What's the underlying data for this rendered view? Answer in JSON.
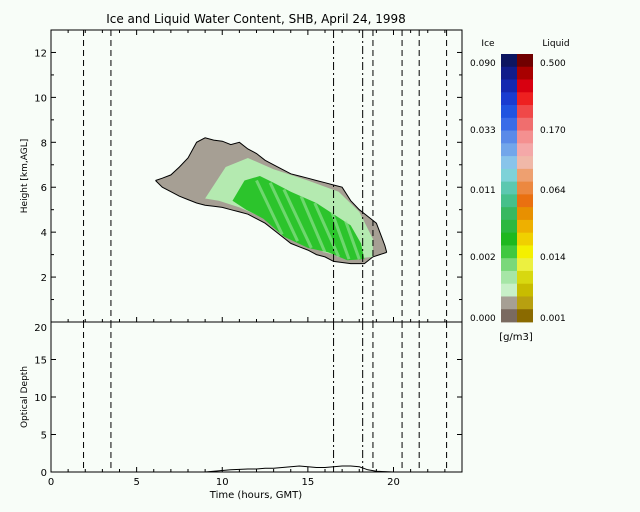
{
  "figure": {
    "title": "Ice and Liquid Water Content, SHB, April 24, 1998",
    "xlabel": "Time (hours, GMT)"
  },
  "chart_data": [
    {
      "type": "heatmap",
      "title": "Ice and Liquid Water Content, SHB, April 24, 1998",
      "ylabel": "Height [km,AGL]",
      "xlim": [
        0,
        24
      ],
      "ylim": [
        0,
        13
      ],
      "x_ticks": [
        0,
        5,
        10,
        15,
        20
      ],
      "x_tick_labels": [
        "0",
        "5",
        "10",
        "15",
        "20"
      ],
      "y_ticks": [
        2,
        4,
        6,
        8,
        10,
        12
      ],
      "y_tick_labels": [
        "2",
        "4",
        "6",
        "8",
        "10",
        "12"
      ],
      "vertical_lines": [
        {
          "x": 1.9,
          "style": "dashed"
        },
        {
          "x": 3.5,
          "style": "dashed"
        },
        {
          "x": 16.5,
          "style": "dash-dot"
        },
        {
          "x": 18.2,
          "style": "dash-dot"
        },
        {
          "x": 18.8,
          "style": "dashed"
        },
        {
          "x": 20.5,
          "style": "dashed"
        },
        {
          "x": 21.5,
          "style": "dashed"
        },
        {
          "x": 23.1,
          "style": "dashed"
        }
      ],
      "cloud": {
        "top_outline": [
          [
            6.1,
            6.3
          ],
          [
            6.5,
            6.4
          ],
          [
            7,
            6.55
          ],
          [
            7.5,
            6.9
          ],
          [
            8,
            7.3
          ],
          [
            8.5,
            8.0
          ],
          [
            9.0,
            8.2
          ],
          [
            9.5,
            8.1
          ],
          [
            10.0,
            8.05
          ],
          [
            10.5,
            7.9
          ],
          [
            11.0,
            8.0
          ],
          [
            11.5,
            7.7
          ],
          [
            12.0,
            7.5
          ],
          [
            12.5,
            7.2
          ],
          [
            13.0,
            7.0
          ],
          [
            13.5,
            6.8
          ],
          [
            14.0,
            6.6
          ],
          [
            14.5,
            6.5
          ],
          [
            15.0,
            6.4
          ],
          [
            15.5,
            6.3
          ],
          [
            16.0,
            6.2
          ],
          [
            16.5,
            6.1
          ],
          [
            17.0,
            6.0
          ],
          [
            17.5,
            5.4
          ],
          [
            18.0,
            5.0
          ],
          [
            18.5,
            4.7
          ],
          [
            19.0,
            4.4
          ],
          [
            19.3,
            3.8
          ],
          [
            19.5,
            3.4
          ],
          [
            19.6,
            3.1
          ]
        ],
        "base_outline": [
          [
            19.6,
            3.1
          ],
          [
            19.2,
            3.0
          ],
          [
            18.8,
            2.9
          ],
          [
            18.3,
            2.6
          ],
          [
            17.5,
            2.6
          ],
          [
            17.0,
            2.65
          ],
          [
            16.5,
            2.7
          ],
          [
            16.0,
            2.9
          ],
          [
            15.5,
            3.0
          ],
          [
            15.0,
            3.2
          ],
          [
            14.5,
            3.35
          ],
          [
            14.0,
            3.5
          ],
          [
            13.5,
            3.8
          ],
          [
            13.0,
            4.1
          ],
          [
            12.5,
            4.4
          ],
          [
            12.0,
            4.6
          ],
          [
            11.5,
            4.8
          ],
          [
            11.0,
            4.9
          ],
          [
            10.5,
            5.0
          ],
          [
            10.0,
            5.1
          ],
          [
            9.5,
            5.15
          ],
          [
            9.0,
            5.2
          ],
          [
            8.5,
            5.3
          ],
          [
            8.0,
            5.45
          ],
          [
            7.5,
            5.6
          ],
          [
            7.0,
            5.8
          ],
          [
            6.5,
            6.0
          ],
          [
            6.1,
            6.3
          ]
        ],
        "light_green_region": [
          [
            9.0,
            5.5
          ],
          [
            10.2,
            6.9
          ],
          [
            11.5,
            7.3
          ],
          [
            13.0,
            6.8
          ],
          [
            15.0,
            6.3
          ],
          [
            16.8,
            5.8
          ],
          [
            18.0,
            4.9
          ],
          [
            18.8,
            3.7
          ],
          [
            18.8,
            2.9
          ],
          [
            17.5,
            2.8
          ],
          [
            16.0,
            3.1
          ],
          [
            14.0,
            3.7
          ],
          [
            12.5,
            4.6
          ],
          [
            11.0,
            5.1
          ],
          [
            9.8,
            5.4
          ]
        ],
        "ice_green_region": [
          [
            10.6,
            5.4
          ],
          [
            11.3,
            6.3
          ],
          [
            12.2,
            6.5
          ],
          [
            13.0,
            6.2
          ],
          [
            14.0,
            5.8
          ],
          [
            15.5,
            5.3
          ],
          [
            16.5,
            4.8
          ],
          [
            17.5,
            4.3
          ],
          [
            18.1,
            3.5
          ],
          [
            18.3,
            2.8
          ],
          [
            17.3,
            2.75
          ],
          [
            16.2,
            3.1
          ],
          [
            15.0,
            3.3
          ],
          [
            13.6,
            3.8
          ],
          [
            12.4,
            4.6
          ],
          [
            11.4,
            5.0
          ]
        ]
      },
      "colorbar": {
        "unit": "[g/m3]",
        "ice_title": "Ice",
        "liquid_title": "Liquid",
        "ice_labels": [
          "0.090",
          "0.033",
          "0.011",
          "0.002",
          "0.000"
        ],
        "liquid_labels": [
          "0.500",
          "0.170",
          "0.064",
          "0.014",
          "0.001"
        ],
        "ice_colors": [
          "#0c1560",
          "#101c8a",
          "#1428b0",
          "#1a3cd0",
          "#2054e0",
          "#3a6ce8",
          "#5a8ae8",
          "#72a6ea",
          "#88c4ea",
          "#7ed2d8",
          "#5cc8b0",
          "#46c08a",
          "#38b860",
          "#2cb840",
          "#1eb81e",
          "#40c840",
          "#7ad87a",
          "#a6e6a6",
          "#c8f0c8",
          "#a69f94",
          "#7a6a60"
        ],
        "liquid_colors": [
          "#700000",
          "#a80000",
          "#d80010",
          "#ee2020",
          "#f04848",
          "#f06e6e",
          "#f49090",
          "#f4a8a8",
          "#f0b8a8",
          "#eea070",
          "#ec8840",
          "#ea7010",
          "#e89000",
          "#eeb000",
          "#f0d000",
          "#f4f000",
          "#ecf040",
          "#d8d810",
          "#c8bc00",
          "#b8a010",
          "#8a6a00"
        ]
      }
    },
    {
      "type": "line",
      "ylabel": "Optical Depth",
      "xlim": [
        0,
        24
      ],
      "ylim": [
        0,
        20
      ],
      "x_ticks": [
        0,
        5,
        10,
        15,
        20
      ],
      "x_tick_labels": [
        "0",
        "5",
        "10",
        "15",
        "20"
      ],
      "y_ticks": [
        0,
        5,
        10,
        15,
        20
      ],
      "y_tick_labels": [
        "0",
        "5",
        "10",
        "15",
        "20"
      ],
      "vertical_lines": [
        {
          "x": 1.9,
          "style": "dashed"
        },
        {
          "x": 3.5,
          "style": "dashed"
        },
        {
          "x": 16.5,
          "style": "dash-dot"
        },
        {
          "x": 18.2,
          "style": "dash-dot"
        },
        {
          "x": 18.8,
          "style": "dashed"
        },
        {
          "x": 20.5,
          "style": "dashed"
        },
        {
          "x": 21.5,
          "style": "dashed"
        },
        {
          "x": 23.1,
          "style": "dashed"
        }
      ],
      "series": [
        {
          "x": [
            0,
            9,
            9.5,
            10,
            10.5,
            11,
            11.5,
            12,
            12.5,
            13,
            13.5,
            14,
            14.5,
            15,
            15.5,
            16,
            16.5,
            17,
            17.5,
            18,
            18.5,
            19,
            19.5,
            20,
            24
          ],
          "y": [
            0,
            0,
            0.1,
            0.2,
            0.3,
            0.35,
            0.4,
            0.4,
            0.5,
            0.5,
            0.6,
            0.7,
            0.8,
            0.7,
            0.6,
            0.6,
            0.7,
            0.8,
            0.8,
            0.7,
            0.3,
            0.1,
            0.05,
            0,
            0
          ],
          "color": "#000000"
        }
      ]
    }
  ]
}
